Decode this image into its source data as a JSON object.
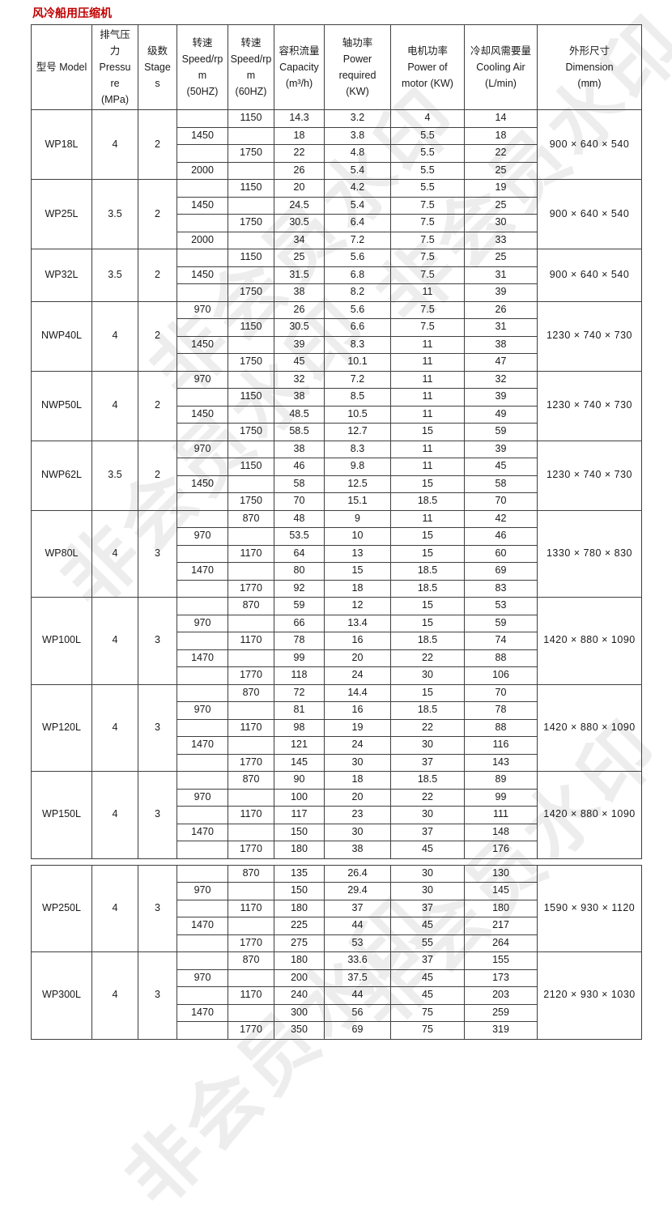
{
  "page": {
    "title": "风冷船用压缩机",
    "title_color": "#c00000"
  },
  "watermark": {
    "text": "非会员水印"
  },
  "table": {
    "headers": [
      "型号 Model",
      "排气压\n力\nPressu\nre\n(MPa)",
      "级数\nStage\ns",
      "转速\nSpeed/rp\nm\n(50HZ)",
      "转速\nSpeed/rp\nm\n(60HZ)",
      "容积流量\nCapacity\n(m³/h)",
      "轴功率\nPower\nrequired\n(KW)",
      "电机功率\nPower of\nmotor (KW)",
      "冷却风需要量\nCooling Air\n(L/min)",
      "外形尺寸\nDimension\n(mm)"
    ],
    "column_keys": [
      "speed_50hz",
      "speed_60hz",
      "capacity",
      "power_required",
      "motor_power",
      "cooling_air"
    ],
    "sections": [
      {
        "groups": [
          {
            "model": "WP18L",
            "pressure": "4",
            "stage": "2",
            "dimension": "900 × 640 × 540",
            "rows": [
              [
                "",
                "1150",
                "14.3",
                "3.2",
                "4",
                "14"
              ],
              [
                "1450",
                "",
                "18",
                "3.8",
                "5.5",
                "18"
              ],
              [
                "",
                "1750",
                "22",
                "4.8",
                "5.5",
                "22"
              ],
              [
                "2000",
                "",
                "26",
                "5.4",
                "5.5",
                "25"
              ]
            ]
          },
          {
            "model": "WP25L",
            "pressure": "3.5",
            "stage": "2",
            "dimension": "900 × 640 × 540",
            "rows": [
              [
                "",
                "1150",
                "20",
                "4.2",
                "5.5",
                "19"
              ],
              [
                "1450",
                "",
                "24.5",
                "5.4",
                "7.5",
                "25"
              ],
              [
                "",
                "1750",
                "30.5",
                "6.4",
                "7.5",
                "30"
              ],
              [
                "2000",
                "",
                "34",
                "7.2",
                "7.5",
                "33"
              ]
            ]
          },
          {
            "model": "WP32L",
            "pressure": "3.5",
            "stage": "2",
            "dimension": "900 × 640 × 540",
            "rows": [
              [
                "",
                "1150",
                "25",
                "5.6",
                "7.5",
                "25"
              ],
              [
                "1450",
                "",
                "31.5",
                "6.8",
                "7.5",
                "31"
              ],
              [
                "",
                "1750",
                "38",
                "8.2",
                "11",
                "39"
              ]
            ]
          },
          {
            "model": "NWP40L",
            "pressure": "4",
            "stage": "2",
            "dimension": "1230 × 740 × 730",
            "rows": [
              [
                "970",
                "",
                "26",
                "5.6",
                "7.5",
                "26"
              ],
              [
                "",
                "1150",
                "30.5",
                "6.6",
                "7.5",
                "31"
              ],
              [
                "1450",
                "",
                "39",
                "8.3",
                "11",
                "38"
              ],
              [
                "",
                "1750",
                "45",
                "10.1",
                "11",
                "47"
              ]
            ]
          },
          {
            "model": "NWP50L",
            "pressure": "4",
            "stage": "2",
            "dimension": "1230 × 740 × 730",
            "rows": [
              [
                "970",
                "",
                "32",
                "7.2",
                "11",
                "32"
              ],
              [
                "",
                "1150",
                "38",
                "8.5",
                "11",
                "39"
              ],
              [
                "1450",
                "",
                "48.5",
                "10.5",
                "11",
                "49"
              ],
              [
                "",
                "1750",
                "58.5",
                "12.7",
                "15",
                "59"
              ]
            ]
          },
          {
            "model": "NWP62L",
            "pressure": "3.5",
            "stage": "2",
            "dimension": "1230 × 740 × 730",
            "rows": [
              [
                "970",
                "",
                "38",
                "8.3",
                "11",
                "39"
              ],
              [
                "",
                "1150",
                "46",
                "9.8",
                "11",
                "45"
              ],
              [
                "1450",
                "",
                "58",
                "12.5",
                "15",
                "58"
              ],
              [
                "",
                "1750",
                "70",
                "15.1",
                "18.5",
                "70"
              ]
            ]
          },
          {
            "model": "WP80L",
            "pressure": "4",
            "stage": "3",
            "dimension": "1330 × 780 × 830",
            "rows": [
              [
                "",
                "870",
                "48",
                "9",
                "11",
                "42"
              ],
              [
                "970",
                "",
                "53.5",
                "10",
                "15",
                "46"
              ],
              [
                "",
                "1170",
                "64",
                "13",
                "15",
                "60"
              ],
              [
                "1470",
                "",
                "80",
                "15",
                "18.5",
                "69"
              ],
              [
                "",
                "1770",
                "92",
                "18",
                "18.5",
                "83"
              ]
            ]
          },
          {
            "model": "WP100L",
            "pressure": "4",
            "stage": "3",
            "dimension": "1420 × 880 × 1090",
            "rows": [
              [
                "",
                "870",
                "59",
                "12",
                "15",
                "53"
              ],
              [
                "970",
                "",
                "66",
                "13.4",
                "15",
                "59"
              ],
              [
                "",
                "1170",
                "78",
                "16",
                "18.5",
                "74"
              ],
              [
                "1470",
                "",
                "99",
                "20",
                "22",
                "88"
              ],
              [
                "",
                "1770",
                "118",
                "24",
                "30",
                "106"
              ]
            ]
          },
          {
            "model": "WP120L",
            "pressure": "4",
            "stage": "3",
            "dimension": "1420 × 880 × 1090",
            "rows": [
              [
                "",
                "870",
                "72",
                "14.4",
                "15",
                "70"
              ],
              [
                "970",
                "",
                "81",
                "16",
                "18.5",
                "78"
              ],
              [
                "",
                "1170",
                "98",
                "19",
                "22",
                "88"
              ],
              [
                "1470",
                "",
                "121",
                "24",
                "30",
                "116"
              ],
              [
                "",
                "1770",
                "145",
                "30",
                "37",
                "143"
              ]
            ]
          },
          {
            "model": "WP150L",
            "pressure": "4",
            "stage": "3",
            "dimension": "1420 × 880 × 1090",
            "rows": [
              [
                "",
                "870",
                "90",
                "18",
                "18.5",
                "89"
              ],
              [
                "970",
                "",
                "100",
                "20",
                "22",
                "99"
              ],
              [
                "",
                "1170",
                "117",
                "23",
                "30",
                "111"
              ],
              [
                "1470",
                "",
                "150",
                "30",
                "37",
                "148"
              ],
              [
                "",
                "1770",
                "180",
                "38",
                "45",
                "176"
              ]
            ]
          }
        ]
      },
      {
        "groups": [
          {
            "model": "WP250L",
            "pressure": "4",
            "stage": "3",
            "dimension": "1590 × 930 × 1120",
            "rows": [
              [
                "",
                "870",
                "135",
                "26.4",
                "30",
                "130"
              ],
              [
                "970",
                "",
                "150",
                "29.4",
                "30",
                "145"
              ],
              [
                "",
                "1170",
                "180",
                "37",
                "37",
                "180"
              ],
              [
                "1470",
                "",
                "225",
                "44",
                "45",
                "217"
              ],
              [
                "",
                "1770",
                "275",
                "53",
                "55",
                "264"
              ]
            ]
          },
          {
            "model": "WP300L",
            "pressure": "4",
            "stage": "3",
            "dimension": "2120 × 930 × 1030",
            "rows": [
              [
                "",
                "870",
                "180",
                "33.6",
                "37",
                "155"
              ],
              [
                "970",
                "",
                "200",
                "37.5",
                "45",
                "173"
              ],
              [
                "",
                "1170",
                "240",
                "44",
                "45",
                "203"
              ],
              [
                "1470",
                "",
                "300",
                "56",
                "75",
                "259"
              ],
              [
                "",
                "1770",
                "350",
                "69",
                "75",
                "319"
              ]
            ]
          }
        ]
      }
    ]
  }
}
